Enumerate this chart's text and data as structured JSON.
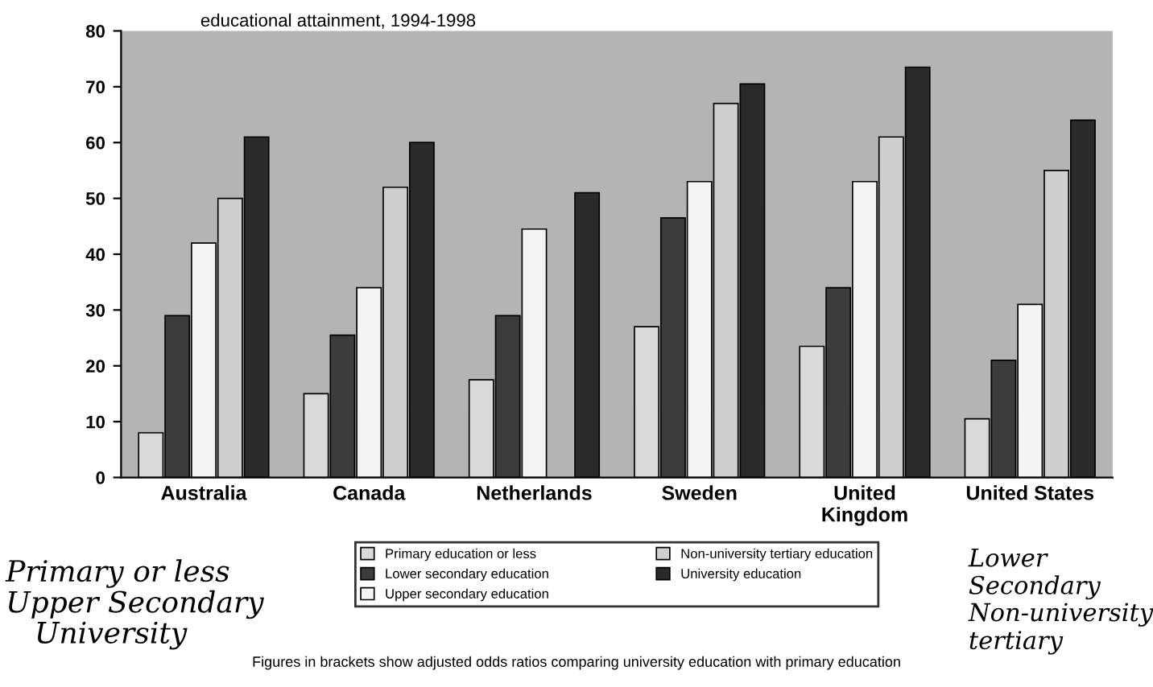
{
  "chart_data": {
    "type": "bar",
    "title": "educational attainment, 1994-1998",
    "categories": [
      "Australia",
      "Canada",
      "Netherlands",
      "Sweden",
      "United\nKingdom",
      "United States"
    ],
    "series": [
      {
        "name": "Primary education or less",
        "color": "#d9d9d9",
        "values": [
          8,
          15,
          17.5,
          27,
          23.5,
          10.5
        ]
      },
      {
        "name": "Lower secondary education",
        "color": "#3c3c3c",
        "values": [
          29,
          25.5,
          29,
          46.5,
          34,
          21
        ]
      },
      {
        "name": "Upper secondary education",
        "color": "#f4f4f4",
        "values": [
          42,
          34,
          44.5,
          53,
          53,
          31
        ]
      },
      {
        "name": "Non-university tertiary education",
        "color": "#cfcfcf",
        "values": [
          50,
          52,
          null,
          67,
          61,
          55
        ]
      },
      {
        "name": "University education",
        "color": "#2a2a2a",
        "values": [
          61,
          60,
          51,
          70.5,
          73.5,
          64
        ]
      }
    ],
    "ylim": [
      0,
      80
    ],
    "yticks": [
      0,
      10,
      20,
      30,
      40,
      50,
      60,
      70,
      80
    ],
    "grid": false,
    "legend": "bottom",
    "annotations": [
      "Figures in brackets show adjusted odds ratios comparing university education with primary education",
      "Primary or less",
      "Upper Secondary",
      "University",
      "Lower Secondary",
      "Non-university tertiary"
    ]
  }
}
